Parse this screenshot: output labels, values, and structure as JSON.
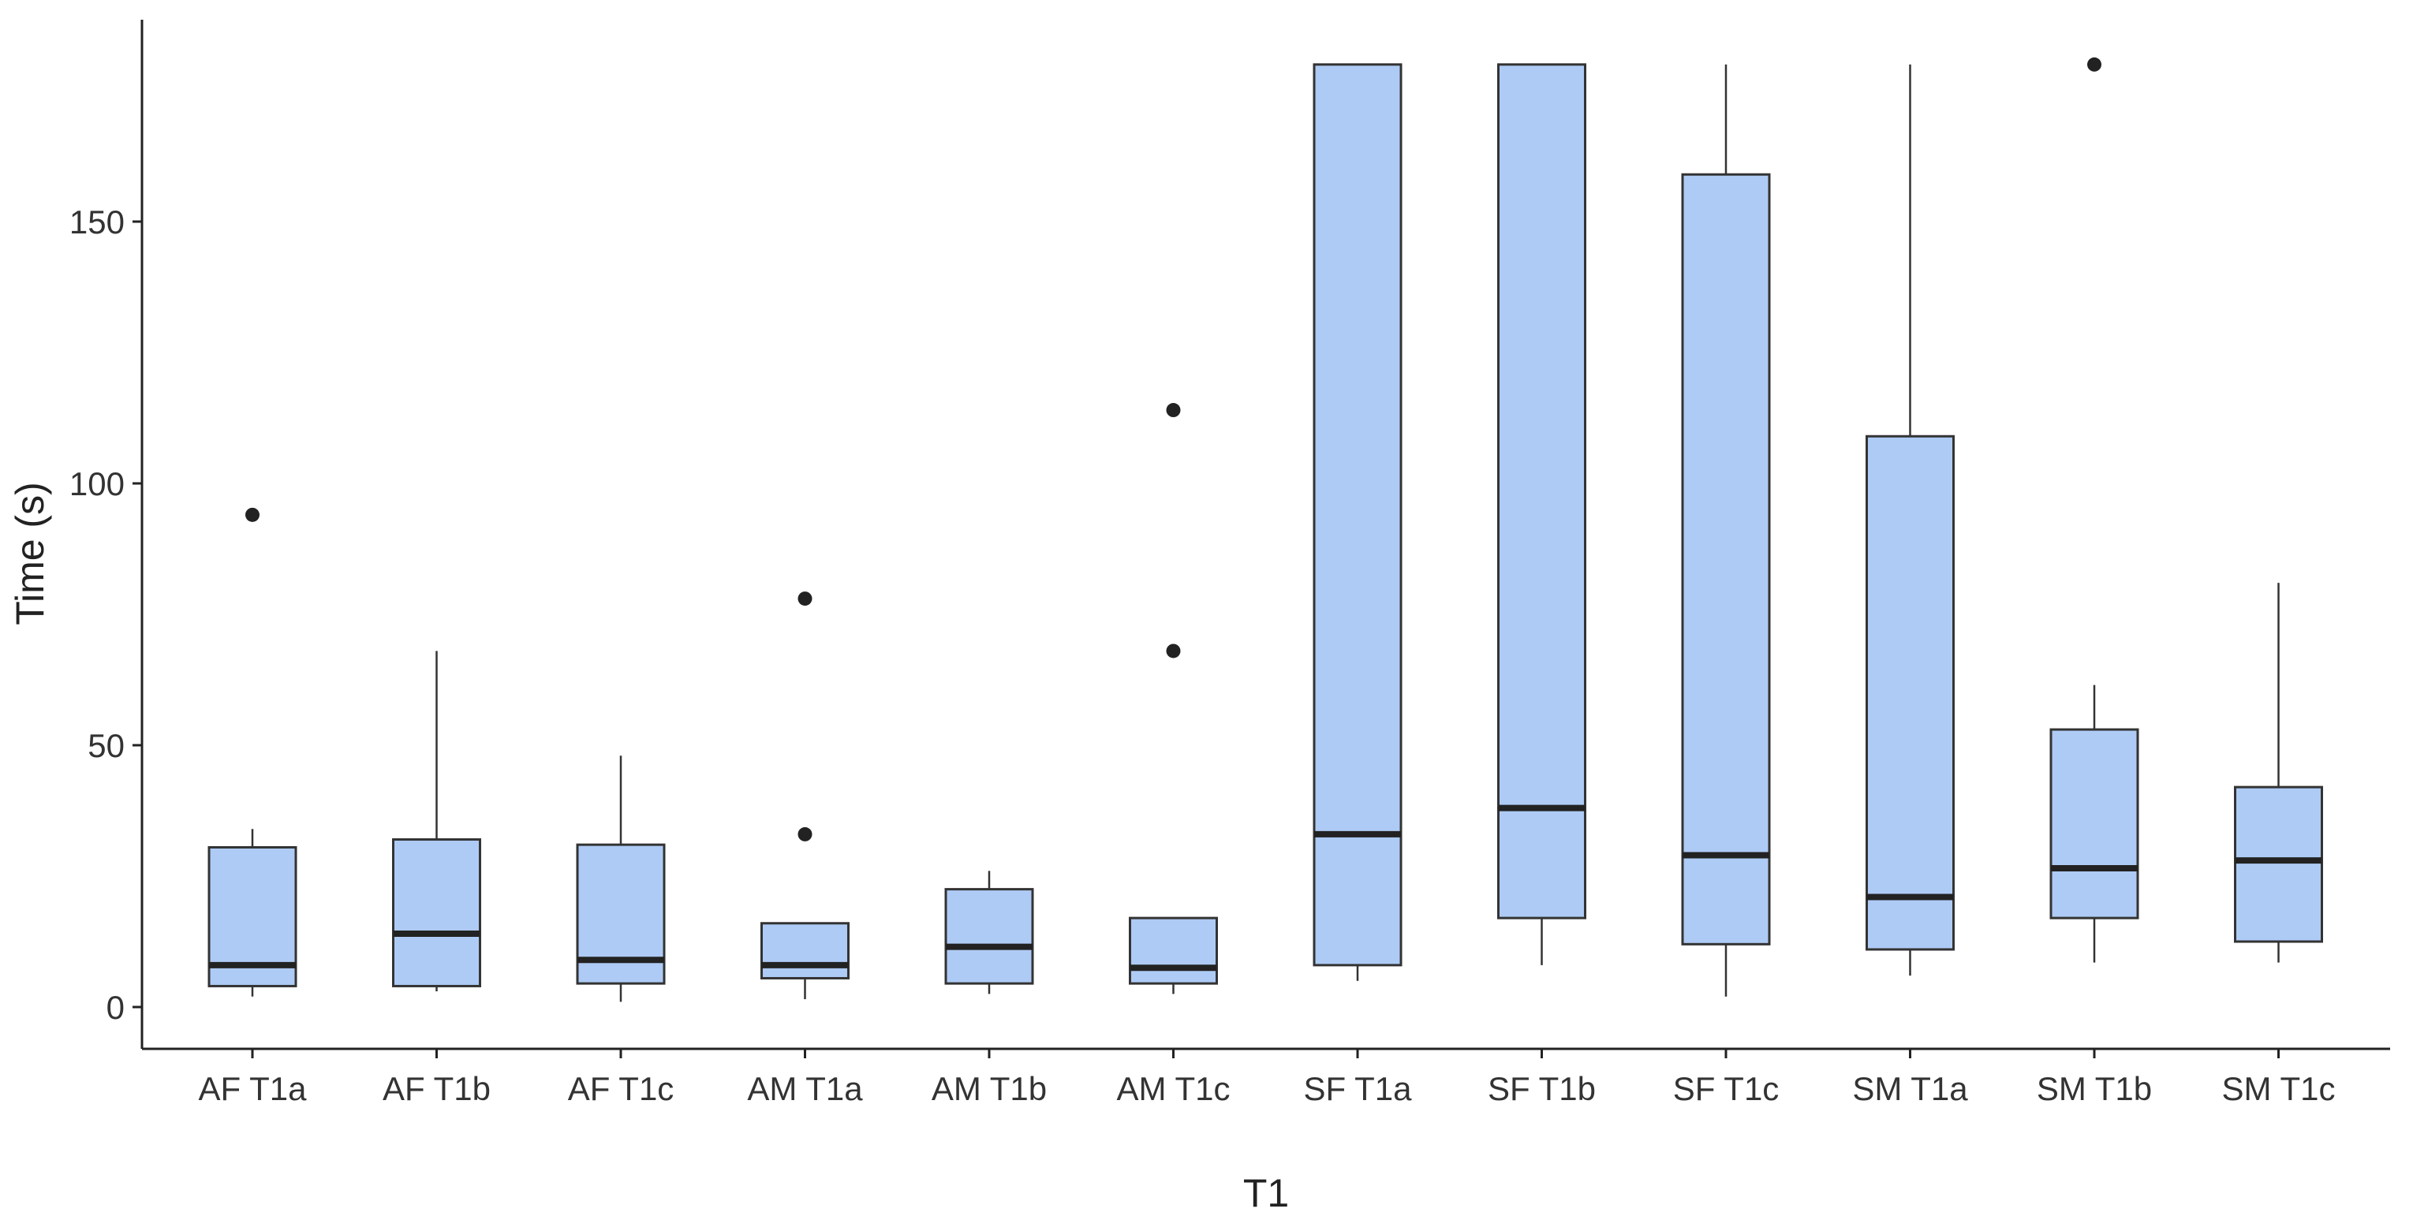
{
  "chart_data": {
    "type": "boxplot",
    "xlabel": "T1",
    "ylabel": "Time (s)",
    "ylim": [
      -8,
      188
    ],
    "yticks": [
      0,
      50,
      100,
      150
    ],
    "grid": false,
    "box_color": "#aecbf5",
    "line_color": "#333333",
    "categories": [
      "AF T1a",
      "AF T1b",
      "AF T1c",
      "AM T1a",
      "AM T1b",
      "AM T1c",
      "SF T1a",
      "SF T1b",
      "SF T1c",
      "SM T1a",
      "SM T1b",
      "SM T1c"
    ],
    "boxes": [
      {
        "min": 2,
        "q1": 4,
        "median": 8,
        "q3": 30.5,
        "max": 34,
        "outliers": [
          94
        ]
      },
      {
        "min": 3,
        "q1": 4,
        "median": 14,
        "q3": 32,
        "max": 68,
        "outliers": []
      },
      {
        "min": 1,
        "q1": 4.5,
        "median": 9,
        "q3": 31,
        "max": 48,
        "outliers": []
      },
      {
        "min": 1.5,
        "q1": 5.5,
        "median": 8,
        "q3": 16,
        "max": 16,
        "outliers": [
          33,
          78
        ]
      },
      {
        "min": 2.5,
        "q1": 4.5,
        "median": 11.5,
        "q3": 22.5,
        "max": 26,
        "outliers": []
      },
      {
        "min": 2.5,
        "q1": 4.5,
        "median": 7.5,
        "q3": 17,
        "max": 17,
        "outliers": [
          68,
          114
        ]
      },
      {
        "min": 5,
        "q1": 8,
        "median": 33,
        "q3": 180,
        "max": 180,
        "outliers": []
      },
      {
        "min": 8,
        "q1": 17,
        "median": 38,
        "q3": 180,
        "max": 180,
        "outliers": []
      },
      {
        "min": 2,
        "q1": 12,
        "median": 29,
        "q3": 159,
        "max": 180,
        "outliers": []
      },
      {
        "min": 6,
        "q1": 11,
        "median": 21,
        "q3": 109,
        "max": 180,
        "outliers": []
      },
      {
        "min": 8.5,
        "q1": 17,
        "median": 26.5,
        "q3": 53,
        "max": 61.5,
        "outliers": [
          180
        ]
      },
      {
        "min": 8.5,
        "q1": 12.5,
        "median": 28,
        "q3": 42,
        "max": 81,
        "outliers": []
      }
    ]
  }
}
